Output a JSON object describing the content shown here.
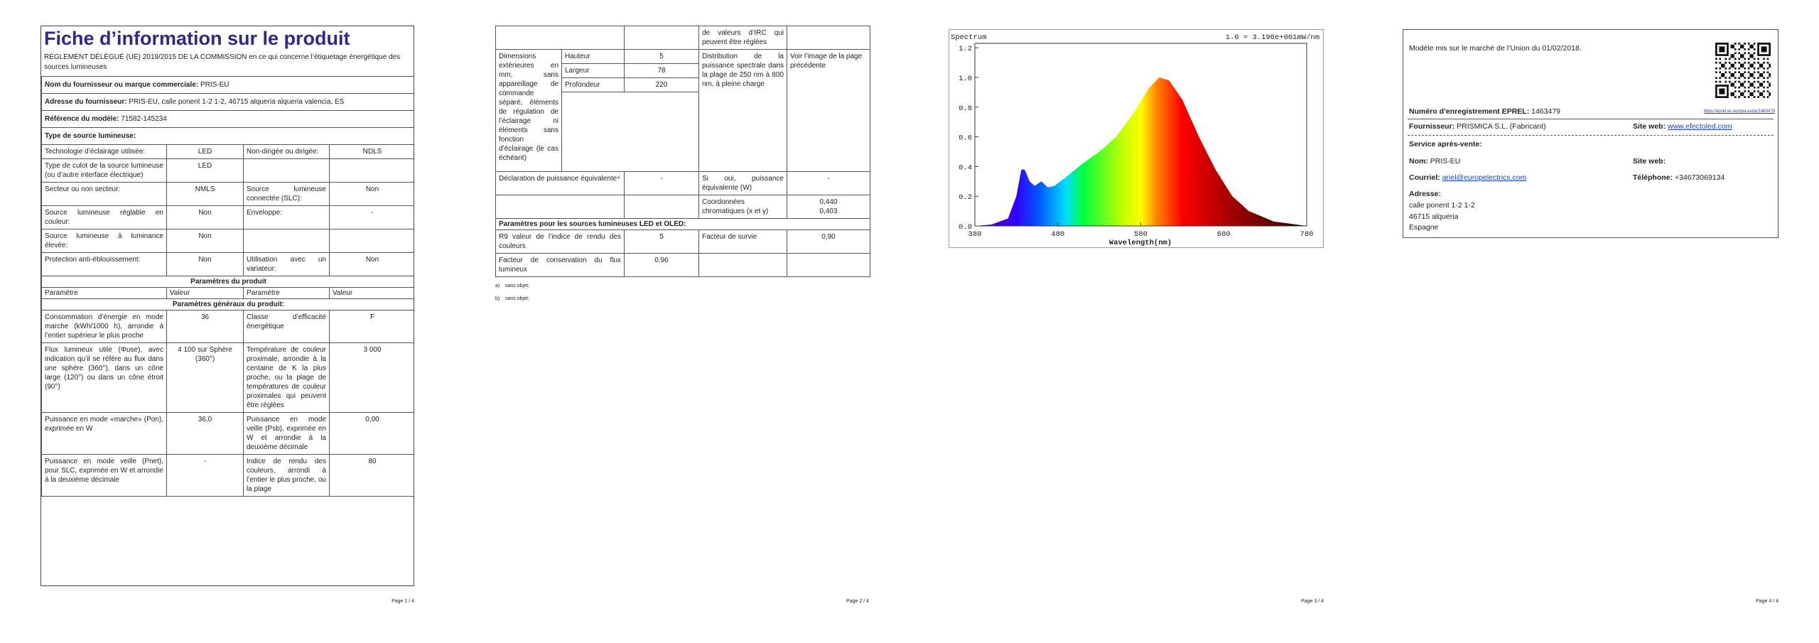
{
  "page1": {
    "title": "Fiche d’information sur le produit",
    "subtitle": "RÈGLEMENT DÉLÉGUÉ (UE) 2019/2015 DE LA COMMISSION en ce qui concerne l’étiquetage énergétique des sources lumineuses",
    "supplier_info": [
      {
        "label": "Nom du fournisseur ou marque commerciale:",
        "value": "PRIS-EU"
      },
      {
        "label": "Adresse du fournisseur:",
        "value": "PRIS-EU, calle ponent 1-2 1-2, 46715 alqueria alqueria valencia, ES"
      },
      {
        "label": "Référence du modèle:",
        "value": "71582-145234"
      }
    ],
    "source_type_heading": "Type de source lumineuse:",
    "source_type_rows": [
      [
        "Technologie d’éclairage utilisée:",
        "LED",
        "Non-dirigée ou dirigée:",
        "NDLS"
      ],
      [
        "Type de culot de la source lumineuse (ou d’autre interface électrique)",
        "LED",
        null,
        null
      ],
      [
        "Secteur ou non secteur:",
        "NMLS",
        "Source lumineuse connectée (SLC):",
        "Non"
      ],
      [
        "Source lumineuse réglable en couleur:",
        "Non",
        "Enveloppe:",
        "-"
      ],
      [
        "Source lumineuse à luminance élevée:",
        "Non",
        null,
        null
      ],
      [
        "Protection anti-éblouissement:",
        "Non",
        "Utilisation avec un variateur:",
        "Non"
      ]
    ],
    "product_params_heading": "Paramètres du produit",
    "column_headers": [
      "Paramètre",
      "Valeur",
      "Paramètre",
      "Valeur"
    ],
    "general_params_heading": "Paramètres généraux du produit:",
    "general_params_rows": [
      [
        "Consommation d’énergie en mode marche (kWh/1000 h), arrondie à l’entier supérieur le plus proche",
        "36",
        "Classe d’efficacité énergétique",
        "F"
      ],
      [
        "Flux lumineux utile (Φuse), avec indication qu’il se réfère au flux dans une sphère (360°), dans un cône large (120°) ou dans un cône étroit (90°)",
        "4 100 sur Sphère (360°)",
        "Température de couleur proximale, arrondie à la centaine de K la plus proche, ou la plage de températures de couleur proximales qui peuvent être réglées",
        "3 000"
      ],
      [
        "Puissance en mode «marche» (Pon), exprimée en W",
        "36,0",
        "Puissance en mode veille (Psb), exprimée en W et arrondie à la deuxième décimale",
        "0,00"
      ],
      [
        "Puissance en mode veille (Pnet), pour SLC, exprimée en W et arrondie à la deuxième décimale",
        "-",
        "Indice de rendu des couleurs, arrondi à l’entier le plus proche, ou la plage",
        "80"
      ]
    ]
  },
  "page2": {
    "continued_row": [
      null,
      null,
      "de valeurs d’IRC qui peuvent être réglées",
      null
    ],
    "dimensions": {
      "label": "Dimensions extérieures en mm, sans appareillage de commande séparé, éléments de régulation de l’éclairage ni éléments sans fonction d’éclairage (le cas échéant)",
      "measures": [
        {
          "name": "Hauteur",
          "value": "5"
        },
        {
          "name": "Largeur",
          "value": "78"
        },
        {
          "name": "Profondeur",
          "value": "220"
        }
      ],
      "spectral_label": "Distribution de la puissance spectrale dans la plage de 250 nm à 800 nm, à pleine charge",
      "spectral_value": "Voir l’image de la page précédente"
    },
    "rows": [
      [
        "Déclaration de puissance équivalente⁴",
        "-",
        "Si oui, puissance équivalente (W)",
        "-"
      ],
      [
        null,
        null,
        "Coordonnées chromatiques (x et y)",
        [
          "0,440",
          "0,403"
        ]
      ]
    ],
    "led_heading": "Paramètres pour les sources lumineuses LED et OLED:",
    "led_rows": [
      [
        "R9 valeur de l’indice de rendu des couleurs",
        "5",
        "Facteur de survie",
        "0,90"
      ],
      [
        "Facteur de conservation du flux lumineux",
        "0,96",
        null,
        null
      ]
    ],
    "footnotes": [
      {
        "marker": "a)",
        "text": "sans objet;"
      },
      {
        "marker": "b)",
        "text": "sans objet;"
      }
    ]
  },
  "page3": {
    "spectrum": {
      "title": "Spectrum",
      "scale_note": "1.0 = 3.196e+001mW/nm",
      "y_tick_labels": [
        "0.0",
        "0.2",
        "0.4",
        "0.6",
        "0.8",
        "1.0",
        "1.2"
      ],
      "x_tick_labels": [
        "380",
        "480",
        "580",
        "680",
        "780"
      ],
      "x_label": "Wavelength(nm)"
    }
  },
  "page4": {
    "market_date": "Modèle mis sur le marché de l’Union du 01/02/2018.",
    "eprel_label": "Numéro d’enregistrement EPREL:",
    "eprel_number": "1463479",
    "eprel_url": "https://eprel.ec.europa.eu/qr/1463479",
    "supplier_label": "Fournisseur:",
    "supplier": "PRISMICA S.L. (Fabricant)",
    "website_label": "Site web:",
    "website": "www.efectoled.com",
    "service_heading": "Service après-vente:",
    "service_name_label": "Nom:",
    "service_name": "PRIS-EU",
    "service_website_label": "Site web:",
    "email_label": "Courriel:",
    "email": "ariel@europelectrics.com",
    "phone_label": "Téléphone:",
    "phone": "+34673069134",
    "address_label": "Adresse:",
    "address_lines": [
      "calle ponent 1-2 1-2",
      "46715 alqueria",
      "Espagne"
    ]
  },
  "page_numbers": [
    "Page 1 / 4",
    "Page 2 / 4",
    "Page 3 / 4",
    "Page 4 / 4"
  ]
}
